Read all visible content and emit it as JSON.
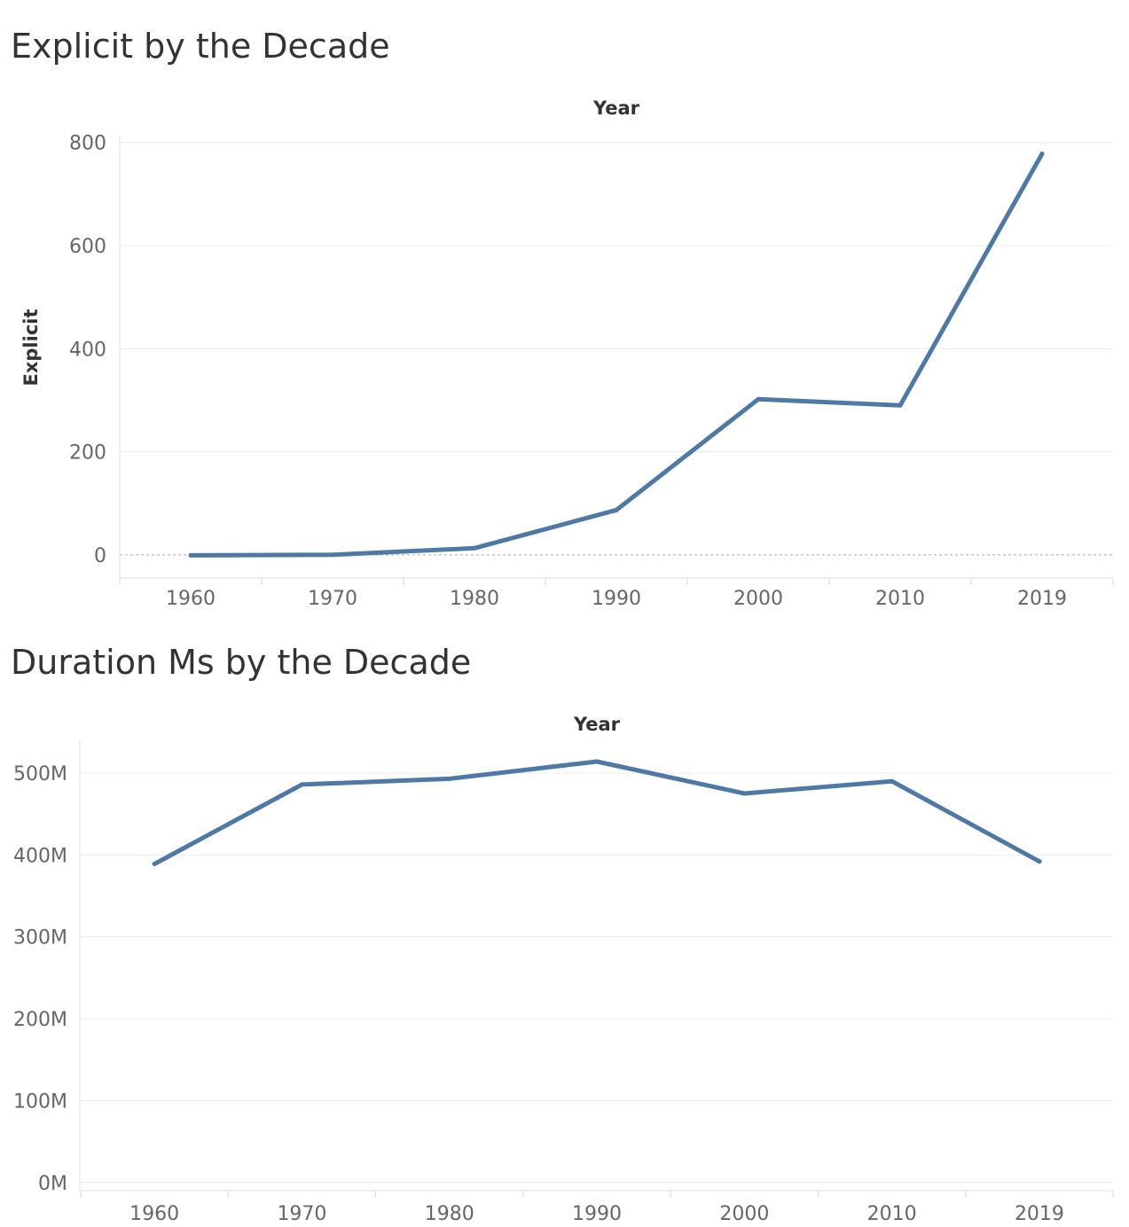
{
  "chart_data": [
    {
      "type": "line",
      "title": "Explicit by the Decade",
      "xlabel": "Year",
      "ylabel": "Explicit",
      "categories": [
        "1960",
        "1970",
        "1980",
        "1990",
        "2000",
        "2010",
        "2019"
      ],
      "series": [
        {
          "name": "Explicit",
          "values": [
            -1,
            0,
            13,
            87,
            302,
            290,
            778
          ]
        }
      ],
      "ylim": [
        -45,
        815
      ],
      "yticks": [
        0,
        200,
        400,
        600,
        800
      ],
      "ytick_labels": [
        "0",
        "200",
        "400",
        "600",
        "800"
      ],
      "grid": true,
      "zero_line": true,
      "line_color": "#4e79a7"
    },
    {
      "type": "line",
      "title": "Duration Ms by the Decade",
      "xlabel": "Year",
      "ylabel": "",
      "categories": [
        "1960",
        "1970",
        "1980",
        "1990",
        "2000",
        "2010",
        "2019"
      ],
      "series": [
        {
          "name": "Duration Ms",
          "values": [
            389000000,
            486000000,
            493000000,
            514000000,
            475000000,
            490000000,
            392000000
          ]
        }
      ],
      "ylim": [
        -10000000,
        540000000
      ],
      "yticks": [
        0,
        100000000,
        200000000,
        300000000,
        400000000,
        500000000
      ],
      "ytick_labels": [
        "0M",
        "100M",
        "200M",
        "300M",
        "400M",
        "500M"
      ],
      "grid": true,
      "zero_line": false,
      "line_color": "#4e79a7"
    }
  ]
}
